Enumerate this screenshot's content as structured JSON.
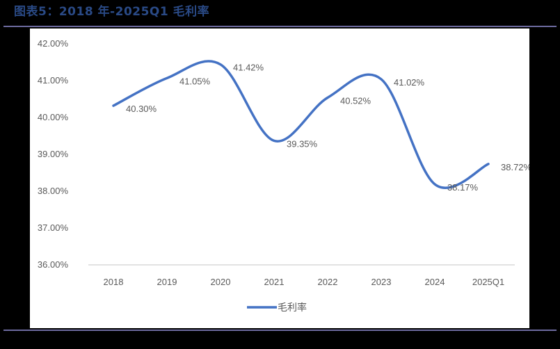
{
  "header": {
    "title": "图表5：2018 年-2025Q1 毛利率"
  },
  "colors": {
    "line": "#4472c4",
    "title": "#2a4a86",
    "rule": "#6d6ba0",
    "text": "#595959",
    "axis": "#d9d9d9"
  },
  "chart_data": {
    "type": "line",
    "title": "",
    "categories": [
      "2018",
      "2019",
      "2020",
      "2021",
      "2022",
      "2023",
      "2024",
      "2025Q1"
    ],
    "series": [
      {
        "name": "毛利率",
        "values": [
          40.3,
          41.05,
          41.42,
          39.35,
          40.52,
          41.02,
          38.17,
          38.72
        ]
      }
    ],
    "data_labels": [
      "40.30%",
      "41.05%",
      "41.42%",
      "39.35%",
      "40.52%",
      "41.02%",
      "38.17%",
      "38.72%"
    ],
    "yticks": [
      "42.00%",
      "41.00%",
      "40.00%",
      "39.00%",
      "38.00%",
      "37.00%",
      "36.00%"
    ],
    "ylim": [
      36,
      42
    ],
    "xlabel": "",
    "ylabel": "",
    "grid": false,
    "smooth": true,
    "legend_position": "bottom"
  }
}
